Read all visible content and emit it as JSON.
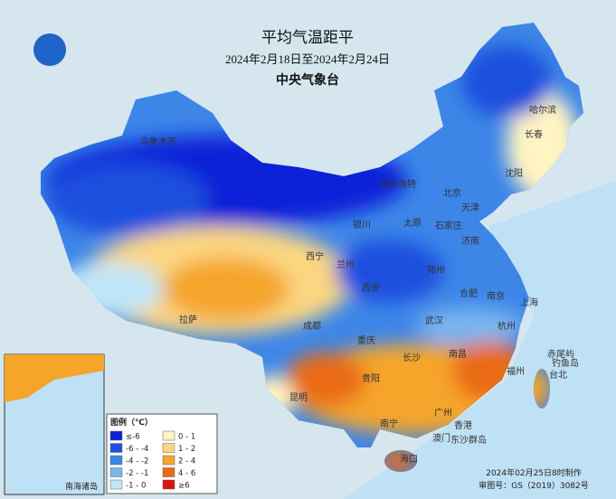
{
  "header": {
    "title": "平均气温距平",
    "subtitle": "2024年2月18日至2024年2月24日",
    "agency": "中央气象台"
  },
  "legend": {
    "title": "图例（℃）",
    "items": [
      {
        "label": "≤-6",
        "color": "#0b22d8"
      },
      {
        "label": "0 - 1",
        "color": "#fff4c2"
      },
      {
        "label": "-6 - -4",
        "color": "#1d50de"
      },
      {
        "label": "1 - 2",
        "color": "#fbd681"
      },
      {
        "label": "-4 - -2",
        "color": "#3d86e8"
      },
      {
        "label": "2 - 4",
        "color": "#f5a52a"
      },
      {
        "label": "-2 - -1",
        "color": "#78b5ef"
      },
      {
        "label": "4 - 6",
        "color": "#ea6a17"
      },
      {
        "label": "-1 - 0",
        "color": "#bfe5f8"
      },
      {
        "label": "≥6",
        "color": "#d8150e"
      }
    ]
  },
  "cities": [
    "哈尔滨",
    "长春",
    "沈阳",
    "呼和浩特",
    "北京",
    "天津",
    "石家庄",
    "太原",
    "银川",
    "济南",
    "西宁",
    "兰州",
    "郑州",
    "西安",
    "合肥",
    "南京",
    "上海",
    "拉萨",
    "成都",
    "武汉",
    "杭州",
    "重庆",
    "长沙",
    "南昌",
    "福州",
    "贵阳",
    "台北",
    "昆明",
    "南宁",
    "广州",
    "香港",
    "澳门",
    "海口",
    "乌鲁木齐",
    "东沙群岛",
    "赤尾屿",
    "钓鱼岛"
  ],
  "inset": {
    "label": "南海诸岛"
  },
  "footer": {
    "made": "2024年02月25日8时制作",
    "review": "审图号：GS（2019）3082号"
  }
}
